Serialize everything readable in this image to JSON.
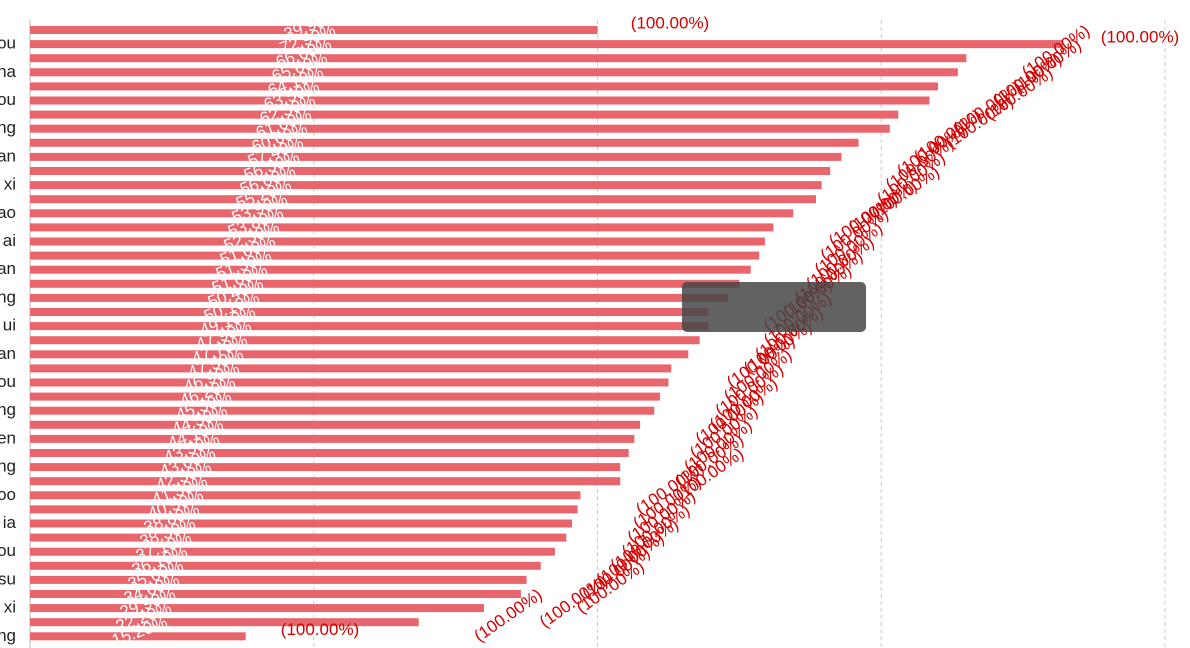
{
  "chart_data": {
    "type": "bar",
    "orientation": "horizontal",
    "color": "#e8656c",
    "categories": [
      null,
      "ou",
      null,
      "na",
      null,
      "ou",
      null,
      "ng",
      null,
      "an",
      null,
      "xi",
      null,
      "ao",
      null,
      "ai",
      null,
      "an",
      null,
      "ng",
      null,
      "ui",
      null,
      "an",
      null,
      "ou",
      null,
      "ng",
      null,
      "en",
      null,
      "ng",
      null,
      "oo",
      null,
      "ia",
      null,
      "ou",
      null,
      "su",
      null,
      "xi",
      null,
      "ng"
    ],
    "values": [
      2.0,
      3.64,
      3.3,
      3.27,
      3.2,
      3.17,
      3.06,
      3.03,
      2.92,
      2.86,
      2.82,
      2.79,
      2.77,
      2.69,
      2.62,
      2.59,
      2.57,
      2.54,
      2.5,
      2.46,
      2.39,
      2.39,
      2.36,
      2.32,
      2.26,
      2.25,
      2.22,
      2.2,
      2.15,
      2.13,
      2.11,
      2.08,
      2.08,
      1.94,
      1.93,
      1.91,
      1.89,
      1.85,
      1.8,
      1.75,
      1.73,
      1.6,
      1.37,
      0.76
    ],
    "percent_labels": [
      "39.90%",
      "72.90%",
      "66.00%",
      "65.60%",
      "64.10%",
      "63.50%",
      "62.30%",
      "61.00%",
      "60.60%",
      "57.40%",
      "56.30%",
      "56.00%",
      "55.20%",
      "53.90%",
      "53.80%",
      "52.30%",
      "51.60%",
      "51.50%",
      "51.00%",
      "50.40%",
      "50.10%",
      "49.10%",
      "47.90%",
      "47.70%",
      "47.50%",
      "46.90%",
      "46.20%",
      "45.30%",
      "44.50%",
      "44.10%",
      "43.50%",
      "43.00%",
      "42.30%",
      "41.30%",
      "40.50%",
      "38.80%",
      "38.30%",
      "37.10%",
      "36.10%",
      "35.60%",
      "34.60%",
      "29.90%",
      "22.20%",
      "15.20%"
    ],
    "total_labels": [
      "(100.00%)",
      "(100.00%)",
      "(100.00%)",
      "(100.00%)",
      "(100.00%)",
      "(100.00%)",
      "(100.00%)",
      "(100.00%)",
      "(100.00%)",
      "(100.00%)",
      "(100.00%)",
      "(100.00%)",
      "(100.00%)",
      "(100.00%)",
      "(100.00%)",
      "(100.00%)",
      "(100.00%)",
      "(100.00%)",
      "(100.00%)",
      "(100.00%)",
      "(100.00%)",
      "(100.00%)",
      "(100.00%)",
      "(100.00%)",
      "(100.00%)",
      "(100.00%)",
      "(100.00%)",
      "(100.00%)",
      "(100.00%)",
      "(100.00%)",
      "(100.00%)",
      "(100.00%)",
      "(100.00%)",
      "(100.00%)",
      "(100.00%)",
      "(100.00%)",
      "(100.00%)",
      "(100.00%)",
      "(100.00%)",
      "(100.00%)",
      "(100.00%)",
      "(100.00%)",
      "(100.00%)",
      "(100.00%)"
    ],
    "xlim": [
      0,
      4
    ],
    "xticks": [
      0,
      1,
      2,
      3,
      4
    ],
    "grid": true
  }
}
